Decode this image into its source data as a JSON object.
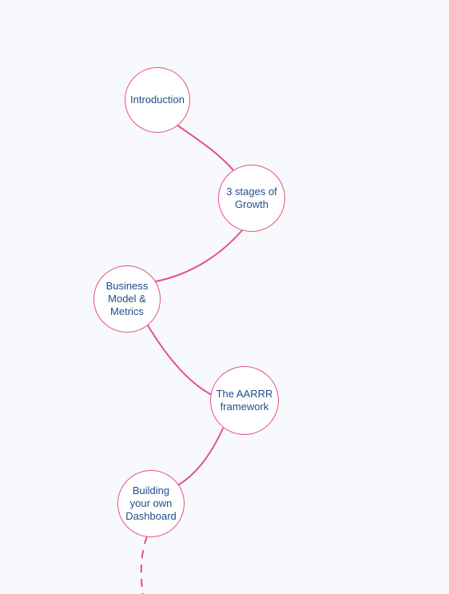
{
  "roadmap": {
    "nodes": [
      {
        "label": "Introduction"
      },
      {
        "label": "3 stages of\nGrowth"
      },
      {
        "label": "Business\nModel &\nMetrics"
      },
      {
        "label": "The AARRR\nframework"
      },
      {
        "label": "Building\nyour own\nDashboard"
      }
    ]
  },
  "colors": {
    "accent": "#ea4f84",
    "text": "#1f4e8c",
    "background": "#f7f9fc",
    "node_fill": "#ffffff"
  }
}
